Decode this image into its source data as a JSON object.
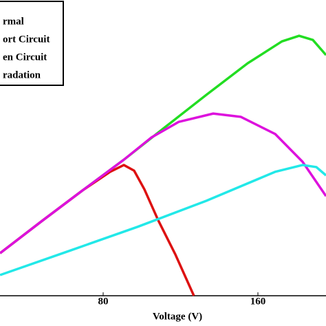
{
  "chart_data": {
    "type": "line",
    "xlabel": "Voltage (V)",
    "xlim": [
      26.67,
      195.2
    ],
    "xticks": [
      80,
      160
    ],
    "ylim": [
      0,
      100
    ],
    "legend": "upper left",
    "series": [
      {
        "name": "rmal",
        "color": "#22dd22",
        "x": [
          26.7,
          48,
          69.3,
          90.7,
          112,
          133.3,
          154.7,
          172.4,
          181.3,
          188.4,
          195.2
        ],
        "values": [
          14.4,
          25.1,
          35.6,
          46.0,
          57.0,
          67.9,
          78.6,
          86.0,
          87.9,
          86.5,
          81.4
        ]
      },
      {
        "name": "ort Circuit",
        "color": "#dd1111",
        "x": [
          26.7,
          48,
          69.3,
          83.6,
          90.7,
          96,
          101.3,
          108.4,
          117.3,
          126.9
        ],
        "values": [
          14.4,
          25.1,
          35.6,
          41.9,
          44.2,
          42.3,
          36,
          25.6,
          14,
          0
        ]
      },
      {
        "name": "en Circuit",
        "color": "#dd11dd",
        "x": [
          26.7,
          48,
          69.3,
          90.7,
          104.9,
          119.1,
          136.9,
          151.1,
          168.9,
          183.1,
          195.2
        ],
        "values": [
          14.4,
          25.1,
          35.6,
          46.0,
          53.5,
          58.8,
          61.6,
          60.5,
          54.7,
          45.3,
          33.7
        ]
      },
      {
        "name": "radation",
        "color": "#22e8e8",
        "x": [
          26.7,
          62.2,
          97.8,
          133.3,
          168.9,
          183.1,
          190.2,
          195.2
        ],
        "values": [
          7,
          15.1,
          23.3,
          32.1,
          41.9,
          44.2,
          43.5,
          40.7
        ]
      }
    ]
  }
}
